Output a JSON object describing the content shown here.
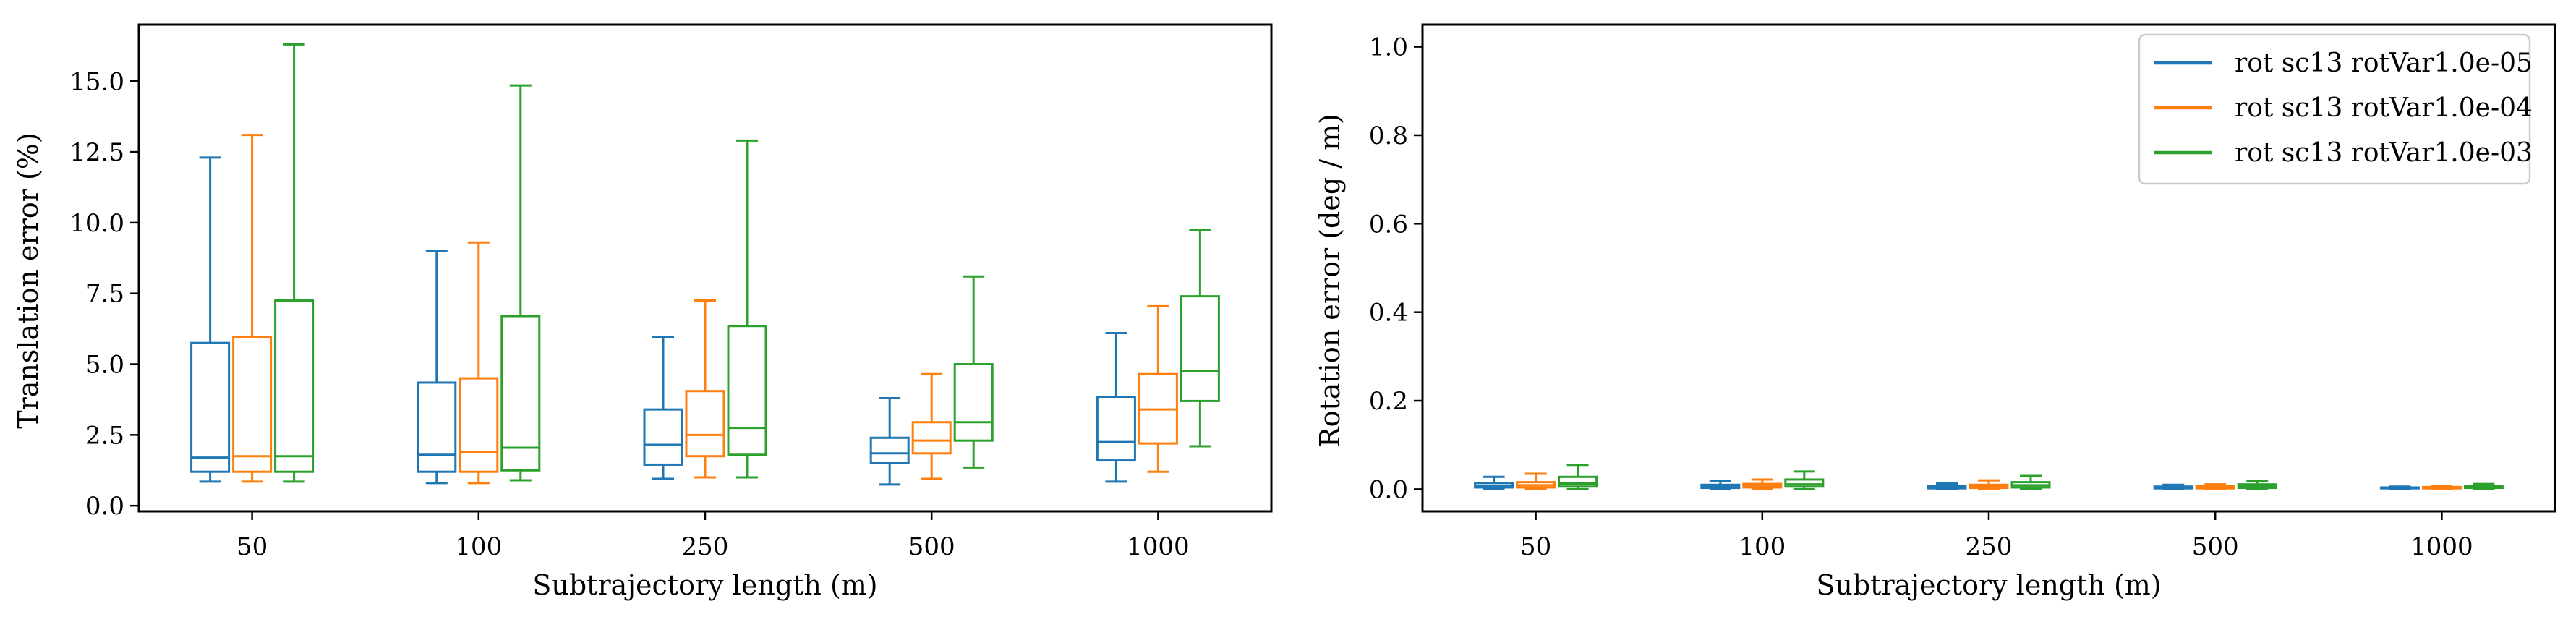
{
  "colors": {
    "series": [
      "#1f77b4",
      "#ff7f0e",
      "#2ca02c"
    ],
    "axis": "#000000",
    "legend_border": "#cccccc"
  },
  "chart_data": [
    {
      "type": "box",
      "title": "",
      "xlabel": "Subtrajectory length (m)",
      "ylabel": "Translation error (%)",
      "categories": [
        "50",
        "100",
        "250",
        "500",
        "1000"
      ],
      "ylim": [
        -0.2,
        17.0
      ],
      "yticks": [
        0.0,
        2.5,
        5.0,
        7.5,
        10.0,
        12.5,
        15.0
      ],
      "ytick_labels": [
        "0.0",
        "2.5",
        "5.0",
        "7.5",
        "10.0",
        "12.5",
        "15.0"
      ],
      "grid": false,
      "legend": false,
      "series": [
        {
          "name": "rot sc13 rotVar1.0e-05",
          "boxes": [
            {
              "whislo": 0.85,
              "q1": 1.2,
              "med": 1.7,
              "q3": 5.75,
              "whishi": 12.3
            },
            {
              "whislo": 0.8,
              "q1": 1.2,
              "med": 1.8,
              "q3": 4.35,
              "whishi": 9.0
            },
            {
              "whislo": 0.95,
              "q1": 1.45,
              "med": 2.15,
              "q3": 3.4,
              "whishi": 5.95
            },
            {
              "whislo": 0.75,
              "q1": 1.5,
              "med": 1.85,
              "q3": 2.4,
              "whishi": 3.8
            },
            {
              "whislo": 0.85,
              "q1": 1.6,
              "med": 2.25,
              "q3": 3.85,
              "whishi": 6.1
            }
          ]
        },
        {
          "name": "rot sc13 rotVar1.0e-04",
          "boxes": [
            {
              "whislo": 0.85,
              "q1": 1.2,
              "med": 1.75,
              "q3": 5.95,
              "whishi": 13.1
            },
            {
              "whislo": 0.8,
              "q1": 1.2,
              "med": 1.9,
              "q3": 4.5,
              "whishi": 9.3
            },
            {
              "whislo": 1.0,
              "q1": 1.75,
              "med": 2.5,
              "q3": 4.05,
              "whishi": 7.25
            },
            {
              "whislo": 0.95,
              "q1": 1.85,
              "med": 2.3,
              "q3": 2.95,
              "whishi": 4.65
            },
            {
              "whislo": 1.2,
              "q1": 2.2,
              "med": 3.4,
              "q3": 4.65,
              "whishi": 7.05
            }
          ]
        },
        {
          "name": "rot sc13 rotVar1.0e-03",
          "boxes": [
            {
              "whislo": 0.85,
              "q1": 1.2,
              "med": 1.75,
              "q3": 7.25,
              "whishi": 16.3
            },
            {
              "whislo": 0.9,
              "q1": 1.25,
              "med": 2.05,
              "q3": 6.7,
              "whishi": 14.85
            },
            {
              "whislo": 1.0,
              "q1": 1.8,
              "med": 2.75,
              "q3": 6.35,
              "whishi": 12.9
            },
            {
              "whislo": 1.35,
              "q1": 2.3,
              "med": 2.95,
              "q3": 5.0,
              "whishi": 8.1
            },
            {
              "whislo": 2.1,
              "q1": 3.7,
              "med": 4.75,
              "q3": 7.4,
              "whishi": 9.75
            }
          ]
        }
      ]
    },
    {
      "type": "box",
      "title": "",
      "xlabel": "Subtrajectory length (m)",
      "ylabel": "Rotation error (deg / m)",
      "categories": [
        "50",
        "100",
        "250",
        "500",
        "1000"
      ],
      "ylim": [
        -0.05,
        1.05
      ],
      "yticks": [
        0.0,
        0.2,
        0.4,
        0.6,
        0.8,
        1.0
      ],
      "ytick_labels": [
        "0.0",
        "0.2",
        "0.4",
        "0.6",
        "0.8",
        "1.0"
      ],
      "grid": false,
      "legend": true,
      "legend_position": "top-right",
      "series": [
        {
          "name": "rot sc13 rotVar1.0e-05",
          "boxes": [
            {
              "whislo": 0.0,
              "q1": 0.004,
              "med": 0.008,
              "q3": 0.014,
              "whishi": 0.028
            },
            {
              "whislo": 0.0,
              "q1": 0.003,
              "med": 0.006,
              "q3": 0.01,
              "whishi": 0.018
            },
            {
              "whislo": 0.0,
              "q1": 0.002,
              "med": 0.005,
              "q3": 0.008,
              "whishi": 0.013
            },
            {
              "whislo": 0.0,
              "q1": 0.002,
              "med": 0.004,
              "q3": 0.006,
              "whishi": 0.01
            },
            {
              "whislo": 0.0,
              "q1": 0.002,
              "med": 0.003,
              "q3": 0.004,
              "whishi": 0.006
            }
          ]
        },
        {
          "name": "rot sc13 rotVar1.0e-04",
          "boxes": [
            {
              "whislo": 0.0,
              "q1": 0.004,
              "med": 0.009,
              "q3": 0.016,
              "whishi": 0.035
            },
            {
              "whislo": 0.0,
              "q1": 0.004,
              "med": 0.008,
              "q3": 0.012,
              "whishi": 0.022
            },
            {
              "whislo": 0.0,
              "q1": 0.003,
              "med": 0.006,
              "q3": 0.01,
              "whishi": 0.02
            },
            {
              "whislo": 0.0,
              "q1": 0.002,
              "med": 0.004,
              "q3": 0.007,
              "whishi": 0.011
            },
            {
              "whislo": 0.0,
              "q1": 0.002,
              "med": 0.003,
              "q3": 0.005,
              "whishi": 0.007
            }
          ]
        },
        {
          "name": "rot sc13 rotVar1.0e-03",
          "boxes": [
            {
              "whislo": 0.0,
              "q1": 0.006,
              "med": 0.013,
              "q3": 0.028,
              "whishi": 0.055
            },
            {
              "whislo": 0.0,
              "q1": 0.006,
              "med": 0.011,
              "q3": 0.022,
              "whishi": 0.04
            },
            {
              "whislo": 0.0,
              "q1": 0.004,
              "med": 0.009,
              "q3": 0.016,
              "whishi": 0.03
            },
            {
              "whislo": 0.0,
              "q1": 0.003,
              "med": 0.007,
              "q3": 0.011,
              "whishi": 0.018
            },
            {
              "whislo": 0.0,
              "q1": 0.003,
              "med": 0.005,
              "q3": 0.008,
              "whishi": 0.012
            }
          ]
        }
      ]
    }
  ]
}
